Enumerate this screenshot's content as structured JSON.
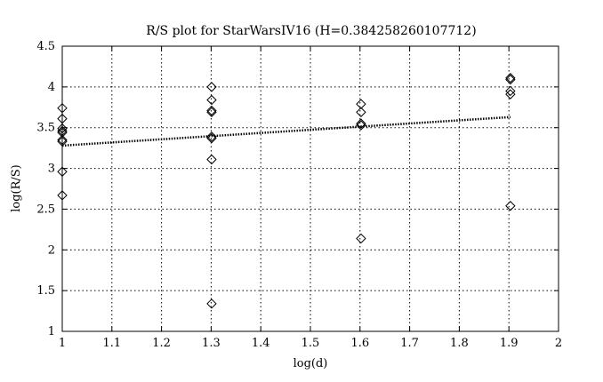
{
  "chart_data": {
    "type": "scatter",
    "title": "R/S plot for StarWarsIV16 (H=0.384258260107712)",
    "xlabel": "log(d)",
    "ylabel": "log(R/S)",
    "xlim": [
      1,
      2
    ],
    "ylim": [
      1,
      4.5
    ],
    "xticks": [
      1,
      1.1,
      1.2,
      1.3,
      1.4,
      1.5,
      1.6,
      1.7,
      1.8,
      1.9,
      2
    ],
    "yticks": [
      1,
      1.5,
      2,
      2.5,
      3,
      3.5,
      4,
      4.5
    ],
    "xtick_labels": [
      "1",
      "1.1",
      "1.2",
      "1.3",
      "1.4",
      "1.5",
      "1.6",
      "1.7",
      "1.8",
      "1.9",
      "2"
    ],
    "ytick_labels": [
      "1",
      "1.5",
      "2",
      "2.5",
      "3",
      "3.5",
      "4",
      "4.5"
    ],
    "grid": true,
    "marker": "diamond",
    "points": [
      {
        "x": 1.0,
        "y": 3.74
      },
      {
        "x": 1.0,
        "y": 3.61
      },
      {
        "x": 1.0,
        "y": 3.49
      },
      {
        "x": 1.0,
        "y": 3.46
      },
      {
        "x": 1.0,
        "y": 3.44
      },
      {
        "x": 1.0,
        "y": 3.35
      },
      {
        "x": 1.0,
        "y": 3.33
      },
      {
        "x": 1.0,
        "y": 2.96
      },
      {
        "x": 1.0,
        "y": 2.67
      },
      {
        "x": 1.301,
        "y": 4.0
      },
      {
        "x": 1.301,
        "y": 3.84
      },
      {
        "x": 1.301,
        "y": 3.71
      },
      {
        "x": 1.301,
        "y": 3.69
      },
      {
        "x": 1.301,
        "y": 3.39
      },
      {
        "x": 1.301,
        "y": 3.37
      },
      {
        "x": 1.301,
        "y": 3.11
      },
      {
        "x": 1.301,
        "y": 1.34
      },
      {
        "x": 1.602,
        "y": 3.79
      },
      {
        "x": 1.602,
        "y": 3.69
      },
      {
        "x": 1.602,
        "y": 3.55
      },
      {
        "x": 1.602,
        "y": 3.53
      },
      {
        "x": 1.602,
        "y": 2.14
      },
      {
        "x": 1.903,
        "y": 4.11
      },
      {
        "x": 1.903,
        "y": 4.09
      },
      {
        "x": 1.903,
        "y": 3.95
      },
      {
        "x": 1.903,
        "y": 3.91
      },
      {
        "x": 1.903,
        "y": 2.54
      }
    ],
    "fit_line": {
      "x": [
        1,
        1.903
      ],
      "y": [
        3.28,
        3.63
      ],
      "style": "dotted"
    }
  }
}
